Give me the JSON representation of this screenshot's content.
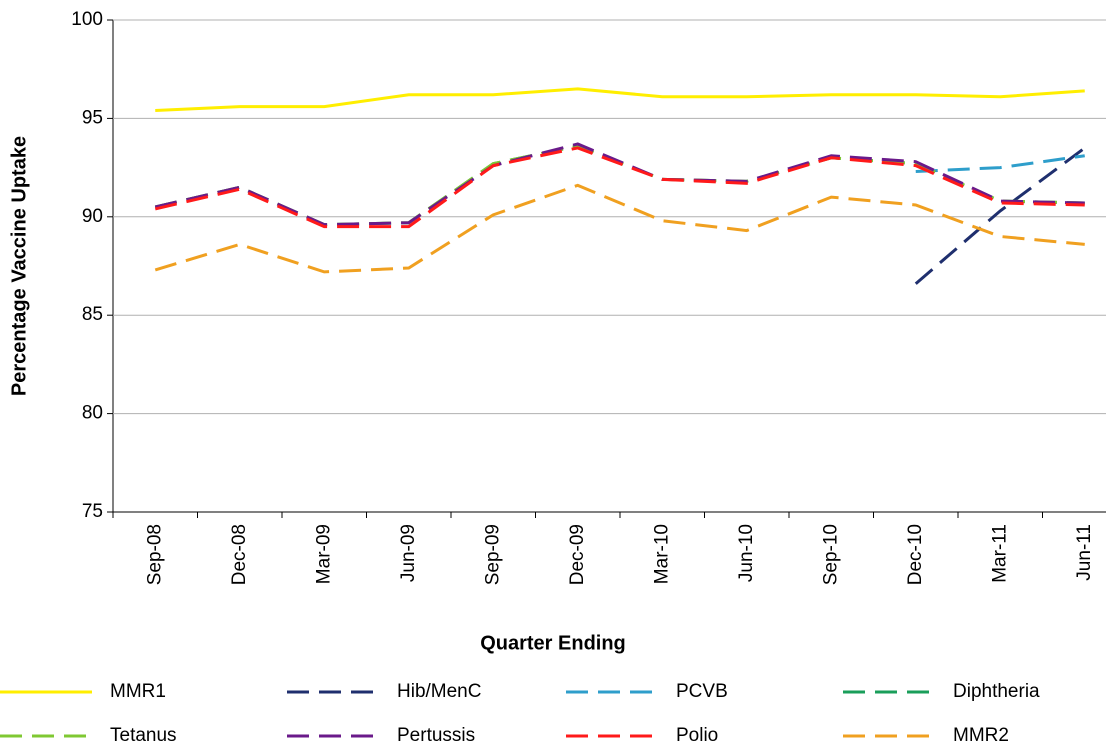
{
  "chart_data": {
    "type": "line",
    "x_label": "Quarter Ending",
    "y_label": "Percentage Vaccine Uptake",
    "categories": [
      "Sep-08",
      "Dec-08",
      "Mar-09",
      "Jun-09",
      "Sep-09",
      "Dec-09",
      "Mar-10",
      "Jun-10",
      "Sep-10",
      "Dec-10",
      "Mar-11",
      "Jun-11"
    ],
    "ylim": [
      75,
      100
    ],
    "yticks": [
      75,
      80,
      85,
      90,
      95,
      100
    ],
    "legend": "bottom",
    "series": [
      {
        "name": "MMR1",
        "color": "#ffee00",
        "dashed": false,
        "values": [
          95.4,
          95.6,
          95.6,
          96.2,
          96.2,
          96.5,
          96.1,
          96.1,
          96.2,
          96.2,
          96.1,
          96.4
        ]
      },
      {
        "name": "Hib/MenC",
        "color": "#1f2f6e",
        "dashed": true,
        "values": [
          null,
          null,
          null,
          null,
          null,
          null,
          null,
          null,
          null,
          86.6,
          90.3,
          93.5
        ]
      },
      {
        "name": "PCVB",
        "color": "#2e9ecb",
        "dashed": true,
        "values": [
          null,
          null,
          null,
          null,
          null,
          null,
          null,
          null,
          null,
          92.3,
          92.5,
          93.1
        ]
      },
      {
        "name": "Diphtheria",
        "color": "#1a9e5a",
        "dashed": true,
        "values": [
          90.5,
          91.5,
          89.6,
          89.7,
          92.7,
          93.6,
          91.9,
          91.8,
          93.0,
          92.7,
          90.8,
          90.7
        ]
      },
      {
        "name": "Tetanus",
        "color": "#7fc832",
        "dashed": true,
        "values": [
          90.5,
          91.5,
          89.6,
          89.7,
          92.7,
          93.6,
          91.9,
          91.8,
          93.0,
          92.7,
          90.8,
          90.7
        ]
      },
      {
        "name": "Pertussis",
        "color": "#6a1a8a",
        "dashed": true,
        "values": [
          90.5,
          91.5,
          89.6,
          89.7,
          92.6,
          93.7,
          91.9,
          91.8,
          93.1,
          92.8,
          90.8,
          90.7
        ]
      },
      {
        "name": "Polio",
        "color": "#ff1a1a",
        "dashed": true,
        "values": [
          90.4,
          91.4,
          89.5,
          89.5,
          92.6,
          93.5,
          91.9,
          91.7,
          93.0,
          92.6,
          90.7,
          90.6
        ]
      },
      {
        "name": "MMR2",
        "color": "#f0a020",
        "dashed": true,
        "values": [
          87.3,
          88.6,
          87.2,
          87.4,
          90.1,
          91.6,
          89.8,
          89.3,
          91.0,
          90.6,
          89.0,
          88.6
        ]
      }
    ]
  }
}
